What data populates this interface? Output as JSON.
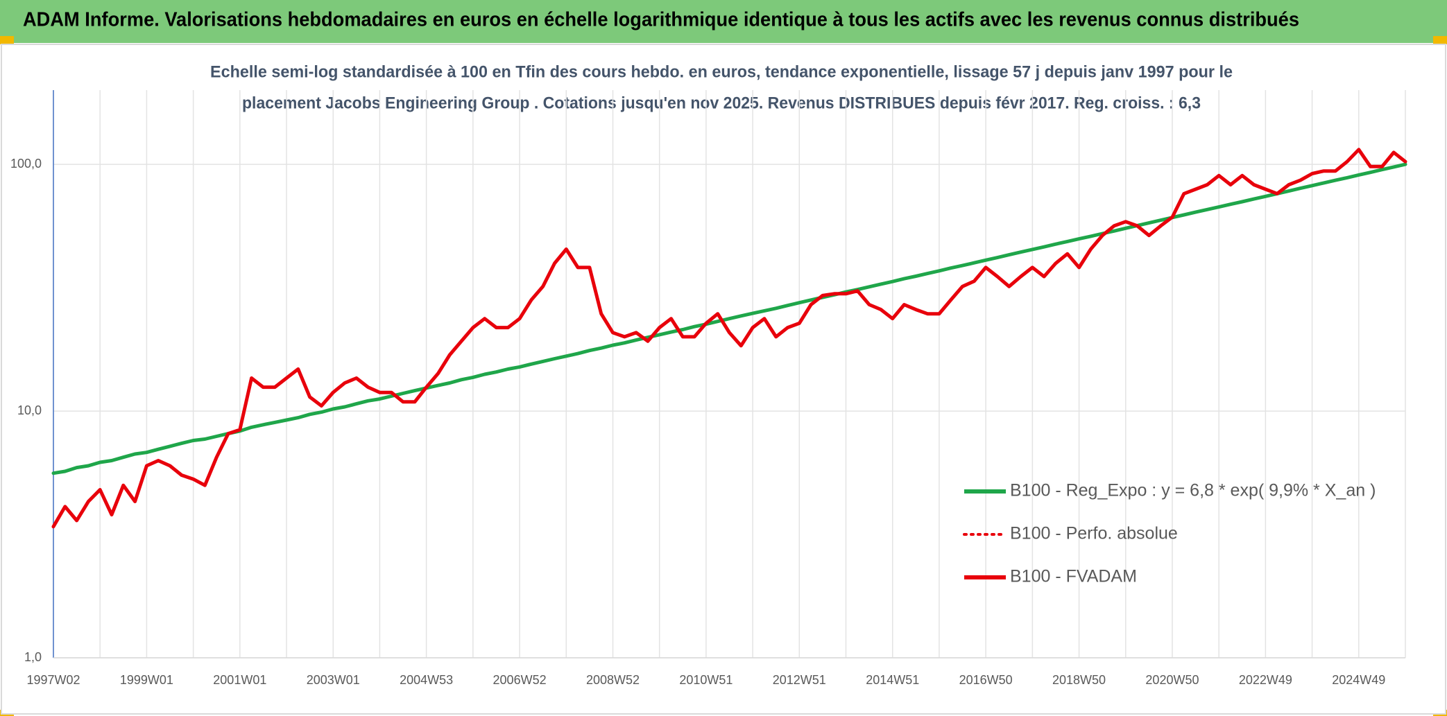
{
  "chart_data": {
    "type": "line",
    "title": "ADAM Informe. Valorisations hebdomadaires en euros en échelle logarithmique identique à tous les actifs avec les revenus connus distribués",
    "subtitle": [
      "Echelle semi-log standardisée à 100 en Tfin des cours hebdo. en euros, tendance exponentielle, lissage 57 j depuis janv 1997 pour le",
      "placement Jacobs Engineering Group . Cotations jusqu'en nov 2025. Revenus DISTRIBUES depuis févr 2017. Reg. croiss. : 6,3"
    ],
    "categories": [
      "1997W02",
      null,
      null,
      null,
      null,
      null,
      null,
      null,
      "1999W01",
      null,
      null,
      null,
      null,
      null,
      null,
      null,
      "2001W01",
      null,
      null,
      null,
      null,
      null,
      null,
      null,
      "2003W01",
      null,
      null,
      null,
      null,
      null,
      null,
      null,
      "2004W53",
      null,
      null,
      null,
      null,
      null,
      null,
      null,
      "2006W52",
      null,
      null,
      null,
      null,
      null,
      null,
      null,
      "2008W52",
      null,
      null,
      null,
      null,
      null,
      null,
      null,
      "2010W51",
      null,
      null,
      null,
      null,
      null,
      null,
      null,
      "2012W51",
      null,
      null,
      null,
      null,
      null,
      null,
      null,
      "2014W51",
      null,
      null,
      null,
      null,
      null,
      null,
      null,
      "2016W50",
      null,
      null,
      null,
      null,
      null,
      null,
      null,
      "2018W50",
      null,
      null,
      null,
      null,
      null,
      null,
      null,
      "2020W50",
      null,
      null,
      null,
      null,
      null,
      null,
      null,
      "2022W49",
      null,
      null,
      null,
      null,
      null,
      null,
      null,
      "2024W49",
      null,
      null,
      null,
      null
    ],
    "series": [
      {
        "name": "B100 - Reg_Expo : y = 6,8 * exp( 9,9% *  X_an )",
        "color": "#1fa64a",
        "style": "solid",
        "values": [
          5.6,
          5.7,
          5.9,
          6.0,
          6.2,
          6.3,
          6.5,
          6.7,
          6.8,
          7.0,
          7.2,
          7.4,
          7.6,
          7.7,
          7.9,
          8.1,
          8.3,
          8.6,
          8.8,
          9.0,
          9.2,
          9.4,
          9.7,
          9.9,
          10.2,
          10.4,
          10.7,
          11.0,
          11.2,
          11.5,
          11.8,
          12.1,
          12.4,
          12.7,
          13.0,
          13.4,
          13.7,
          14.1,
          14.4,
          14.8,
          15.1,
          15.5,
          15.9,
          16.3,
          16.7,
          17.1,
          17.6,
          18.0,
          18.5,
          18.9,
          19.4,
          19.9,
          20.4,
          20.9,
          21.4,
          22.0,
          22.5,
          23.1,
          23.7,
          24.3,
          24.9,
          25.5,
          26.1,
          26.8,
          27.5,
          28.2,
          28.9,
          29.6,
          30.4,
          31.1,
          31.9,
          32.7,
          33.5,
          34.4,
          35.2,
          36.1,
          37.0,
          38.0,
          38.9,
          39.9,
          40.9,
          41.9,
          43.0,
          44.1,
          45.2,
          46.3,
          47.5,
          48.7,
          49.9,
          51.1,
          52.4,
          53.7,
          55.1,
          56.5,
          57.9,
          59.4,
          60.9,
          62.4,
          64.0,
          65.6,
          67.2,
          68.9,
          70.6,
          72.4,
          74.2,
          76.1,
          78.0,
          80.0,
          82.0,
          84.1,
          86.2,
          88.3,
          90.6,
          92.8,
          95.2,
          97.6,
          100.0
        ]
      },
      {
        "name": "B100 - Perfo. absolue",
        "color": "#e8000b",
        "style": "dotted",
        "values": [
          3.4,
          4.1,
          3.6,
          4.3,
          4.8,
          3.8,
          5.0,
          4.3,
          6.0,
          6.3,
          6.0,
          5.5,
          5.3,
          5.0,
          6.5,
          8.1,
          8.4,
          13.6,
          12.5,
          12.5,
          13.6,
          14.8,
          11.4,
          10.5,
          11.9,
          13.0,
          13.6,
          12.5,
          11.9,
          11.9,
          10.9,
          10.9,
          12.5,
          14.2,
          16.9,
          19.2,
          21.8,
          23.7,
          21.8,
          21.8,
          23.7,
          28.2,
          32.0,
          39.7,
          45.3,
          38.2,
          38.2,
          24.8,
          20.8,
          20.0,
          20.8,
          19.2,
          21.8,
          23.7,
          20.0,
          20.0,
          22.7,
          24.8,
          20.8,
          18.4,
          21.8,
          23.7,
          20.0,
          21.8,
          22.7,
          27.0,
          29.4,
          29.9,
          29.9,
          30.7,
          27.0,
          25.8,
          23.7,
          27.0,
          25.8,
          24.8,
          24.8,
          28.2,
          32.0,
          33.6,
          38.2,
          35.1,
          32.0,
          35.1,
          38.2,
          35.1,
          39.7,
          43.4,
          38.2,
          45.3,
          51.5,
          56.3,
          58.6,
          56.3,
          51.5,
          56.3,
          61.1,
          76.1,
          79.3,
          82.7,
          90.1,
          82.7,
          90.1,
          82.7,
          79.3,
          76.1,
          82.7,
          86.3,
          91.7,
          94.0,
          94.0,
          102.6,
          114.8,
          98.0,
          98.0,
          111.8,
          102.6
        ]
      },
      {
        "name": "B100 - FVADAM",
        "color": "#e8000b",
        "style": "solid",
        "values": [
          3.4,
          4.1,
          3.6,
          4.3,
          4.8,
          3.8,
          5.0,
          4.3,
          6.0,
          6.3,
          6.0,
          5.5,
          5.3,
          5.0,
          6.5,
          8.1,
          8.4,
          13.6,
          12.5,
          12.5,
          13.6,
          14.8,
          11.4,
          10.5,
          11.9,
          13.0,
          13.6,
          12.5,
          11.9,
          11.9,
          10.9,
          10.9,
          12.5,
          14.2,
          16.9,
          19.2,
          21.8,
          23.7,
          21.8,
          21.8,
          23.7,
          28.2,
          32.0,
          39.7,
          45.3,
          38.2,
          38.2,
          24.8,
          20.8,
          20.0,
          20.8,
          19.2,
          21.8,
          23.7,
          20.0,
          20.0,
          22.7,
          24.8,
          20.8,
          18.4,
          21.8,
          23.7,
          20.0,
          21.8,
          22.7,
          27.0,
          29.4,
          29.9,
          29.9,
          30.7,
          27.0,
          25.8,
          23.7,
          27.0,
          25.8,
          24.8,
          24.8,
          28.2,
          32.0,
          33.6,
          38.2,
          35.1,
          32.0,
          35.1,
          38.2,
          35.1,
          39.7,
          43.4,
          38.2,
          45.3,
          51.5,
          56.3,
          58.6,
          56.3,
          51.5,
          56.3,
          61.1,
          76.1,
          79.3,
          82.7,
          90.1,
          82.7,
          90.1,
          82.7,
          79.3,
          76.1,
          82.7,
          86.3,
          91.7,
          94.0,
          94.0,
          102.6,
          114.8,
          98.0,
          98.0,
          111.8,
          102.6
        ]
      }
    ],
    "log_scale": true,
    "ylim": [
      1,
      200
    ],
    "yticks": [
      {
        "value": 1,
        "label": "1,0"
      },
      {
        "value": 10,
        "label": "10,0"
      },
      {
        "value": 100,
        "label": "100,0"
      }
    ],
    "grid": true,
    "legend": "right"
  }
}
